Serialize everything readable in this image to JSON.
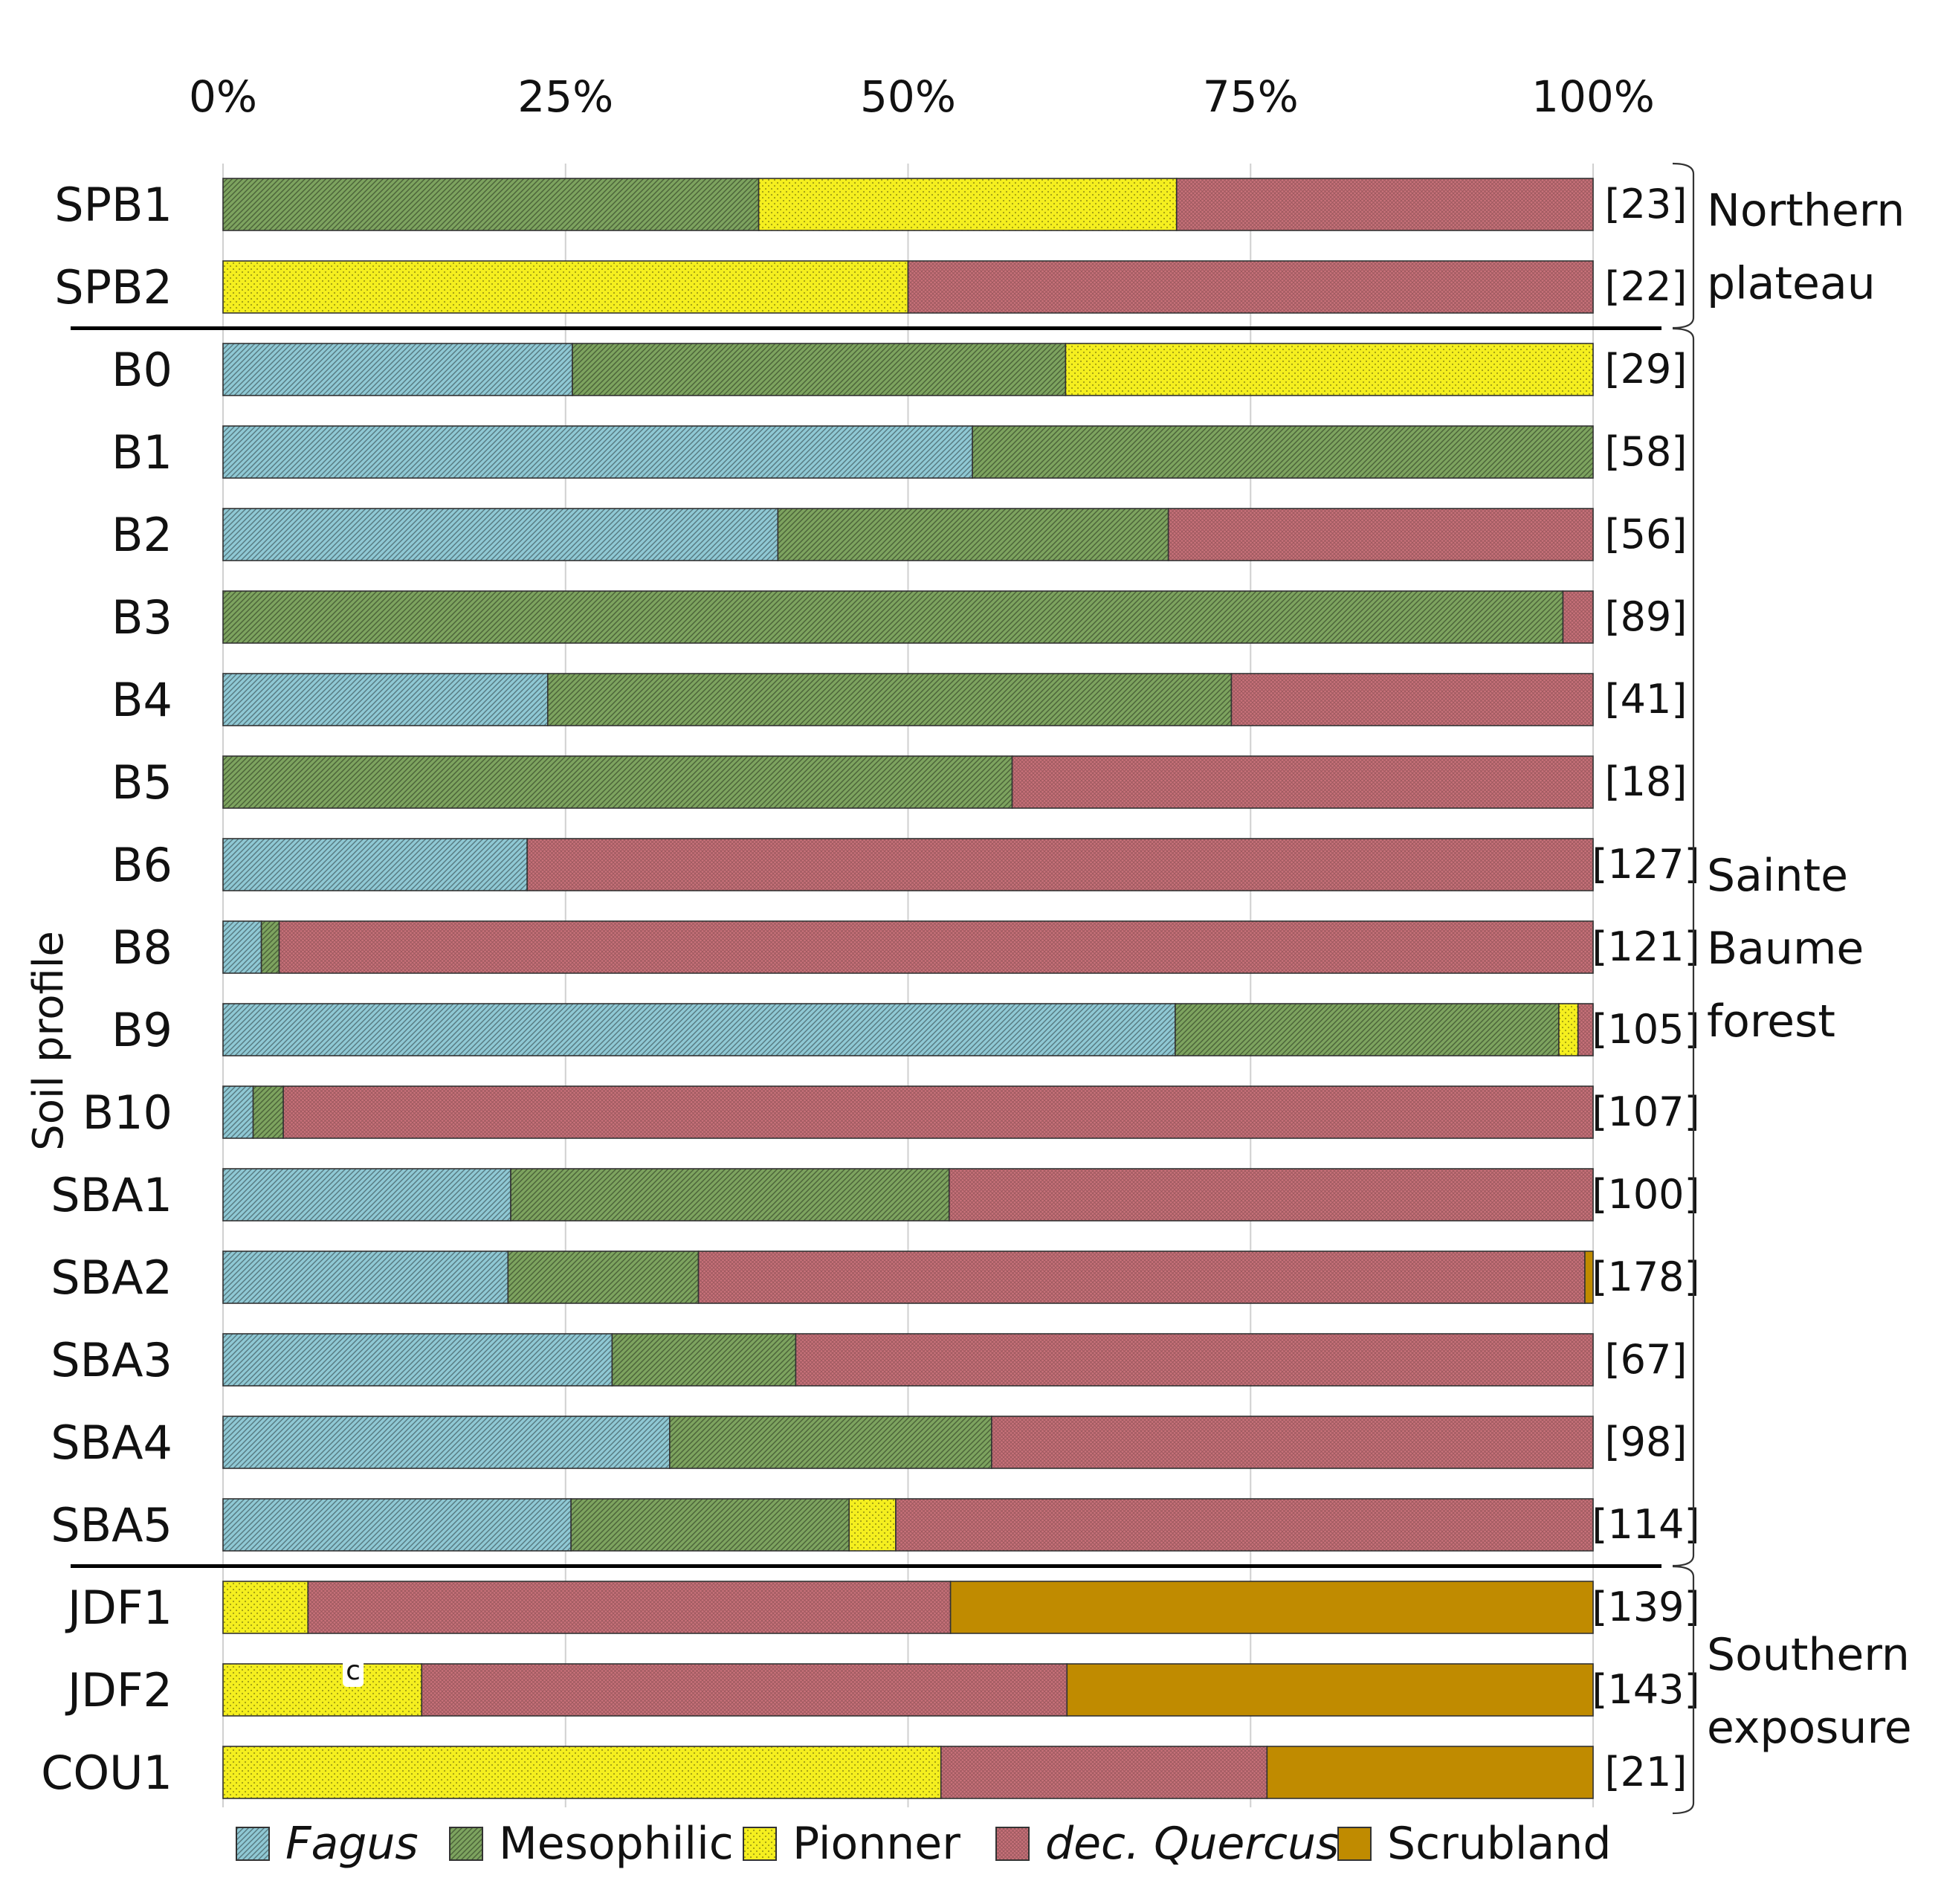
{
  "chart_data": {
    "type": "bar",
    "orientation": "horizontal",
    "stacked": true,
    "normalized_percent": true,
    "ylabel": "Soil profile",
    "xlim": [
      0,
      100
    ],
    "xticks": [
      "0%",
      "25%",
      "50%",
      "75%",
      "100%"
    ],
    "categories": [
      "SPB1",
      "SPB2",
      "B0",
      "B1",
      "B2",
      "B3",
      "B4",
      "B5",
      "B6",
      "B8",
      "B9",
      "B10",
      "SBA1",
      "SBA2",
      "SBA3",
      "SBA4",
      "SBA5",
      "JDF1",
      "JDF2",
      "COU1"
    ],
    "counts": [
      "[23]",
      "[22]",
      "[29]",
      "[58]",
      "[56]",
      "[89]",
      "[41]",
      "[18]",
      "[127]",
      "[121]",
      "[105]",
      "[107]",
      "[100]",
      "[178]",
      "[67]",
      "[98]",
      "[114]",
      "[139]",
      "[143]",
      "[21]"
    ],
    "series": [
      {
        "name": "Fagus",
        "italic": true,
        "color": "#8fc8d4",
        "pattern": "hatch",
        "values": [
          0,
          0,
          25.5,
          54.7,
          40.5,
          0,
          23.7,
          0,
          22.2,
          2.8,
          69.5,
          2.2,
          21,
          20.8,
          28.4,
          32.6,
          25.4,
          0,
          0,
          0
        ]
      },
      {
        "name": "Mesophilic",
        "italic": false,
        "color": "#7da35f",
        "pattern": "hatch",
        "values": [
          39.1,
          0,
          36,
          45.3,
          28.5,
          97.8,
          49.9,
          57.6,
          0,
          1.3,
          28,
          2.2,
          32,
          13.9,
          13.4,
          23.5,
          20.3,
          0,
          0,
          0
        ]
      },
      {
        "name": "Pionner",
        "italic": false,
        "color": "#f5ef1f",
        "pattern": "dots",
        "values": [
          30.5,
          50,
          38.5,
          0,
          0,
          0,
          0,
          0,
          0,
          0,
          1.4,
          0,
          0,
          0,
          0,
          0,
          3.4,
          6.2,
          14.5,
          52.4
        ]
      },
      {
        "name": "dec. Quercus",
        "italic": true,
        "color": "#c9727a",
        "pattern": "cross",
        "values": [
          30.4,
          50,
          0,
          0,
          31,
          2.2,
          26.4,
          42.4,
          77.8,
          95.9,
          1.1,
          95.6,
          47,
          64.7,
          58.2,
          43.9,
          50.9,
          46.9,
          47.1,
          23.8
        ]
      },
      {
        "name": "Scrubland",
        "italic": false,
        "color": "#c08b00",
        "pattern": "solid",
        "values": [
          0,
          0,
          0,
          0,
          0,
          0,
          0,
          0,
          0,
          0,
          0,
          0,
          0,
          0.6,
          0,
          0,
          0,
          46.9,
          38.4,
          23.8
        ]
      }
    ],
    "groups": [
      {
        "name_lines": [
          "Northern",
          "plateau"
        ],
        "first": 0,
        "last": 1
      },
      {
        "name_lines": [
          "Sainte",
          "Baume",
          "forest"
        ],
        "first": 2,
        "last": 16
      },
      {
        "name_lines": [
          "Southern",
          "exposure"
        ],
        "first": 17,
        "last": 19
      }
    ],
    "annotations": [
      {
        "text": "c",
        "category": "JDF2",
        "x": 9.5
      }
    ],
    "legend_position": "bottom"
  }
}
